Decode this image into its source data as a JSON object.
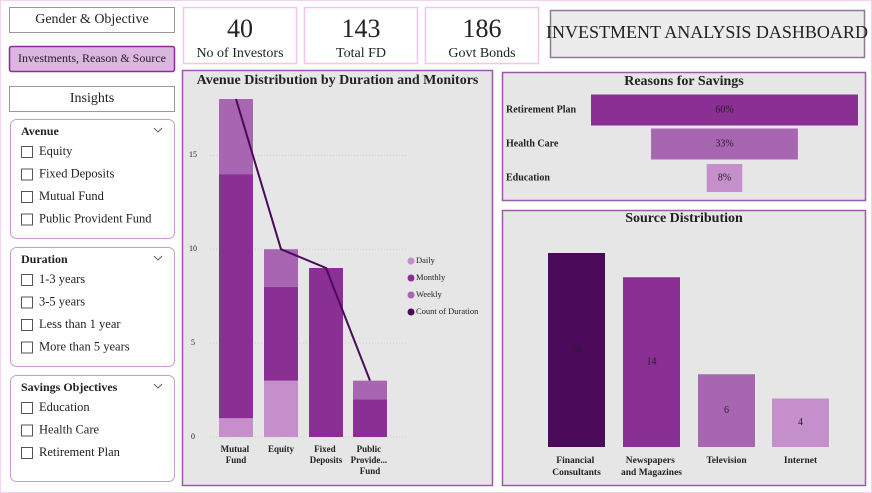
{
  "nav": [
    "Gender & Objective",
    "Investments, Reason & Source",
    "Insights"
  ],
  "kpis": [
    {
      "value": 40,
      "label": "No of Investors"
    },
    {
      "value": 143,
      "label": "Total FD"
    },
    {
      "value": 186,
      "label": "Govt Bonds"
    }
  ],
  "dashboard_title": "INVESTMENT ANALYSIS DASHBOARD",
  "slicers": [
    {
      "title": "Avenue",
      "options": [
        "Equity",
        "Fixed Deposits",
        "Mutual Fund",
        "Public Provident Fund"
      ]
    },
    {
      "title": "Duration",
      "options": [
        "1-3 years",
        "3-5 years",
        "Less than 1 year",
        "More than 5 years"
      ]
    },
    {
      "title": "Savings Objectives",
      "options": [
        "Education",
        "Health Care",
        "Retirement Plan"
      ]
    }
  ],
  "chart_data": [
    {
      "type": "bar",
      "stacked": true,
      "title": "Avenue Distribution by Duration and Monitors",
      "categories": [
        "Mutual Fund",
        "Equity",
        "Fixed Deposits",
        "Public Provide... Fund"
      ],
      "series": [
        {
          "name": "Daily",
          "color": "#c58fcb",
          "values": [
            1,
            3,
            null,
            null
          ]
        },
        {
          "name": "Monthly",
          "color": "#8a2f94",
          "values": [
            13,
            5,
            9,
            2
          ]
        },
        {
          "name": "Weekly",
          "color": "#a865b1",
          "values": [
            4,
            2,
            null,
            1
          ]
        },
        {
          "name": "Count of Duration",
          "type": "line",
          "color": "#4b0a59",
          "values": [
            18,
            10,
            9,
            3
          ]
        }
      ],
      "ylim": [
        0,
        18
      ],
      "yticks": [
        0,
        5,
        10,
        15
      ],
      "grid": true,
      "legend": "right"
    },
    {
      "type": "funnel",
      "title": "Reasons for Savings",
      "categories": [
        "Retirement Plan",
        "Health Care",
        "Education"
      ],
      "values": [
        60,
        33,
        8
      ],
      "value_labels": [
        "60%",
        "33%",
        "8%"
      ],
      "colors": [
        "#8a2f94",
        "#a865b1",
        "#c58fcb"
      ]
    },
    {
      "type": "column",
      "title": "Source Distribution",
      "categories": [
        "Financial Consultants",
        "Newspapers and Magazines",
        "Television",
        "Internet"
      ],
      "values": [
        16,
        14,
        6,
        4
      ],
      "colors": [
        "#4b0a59",
        "#8a2f94",
        "#a865b1",
        "#c58fcb"
      ]
    }
  ]
}
